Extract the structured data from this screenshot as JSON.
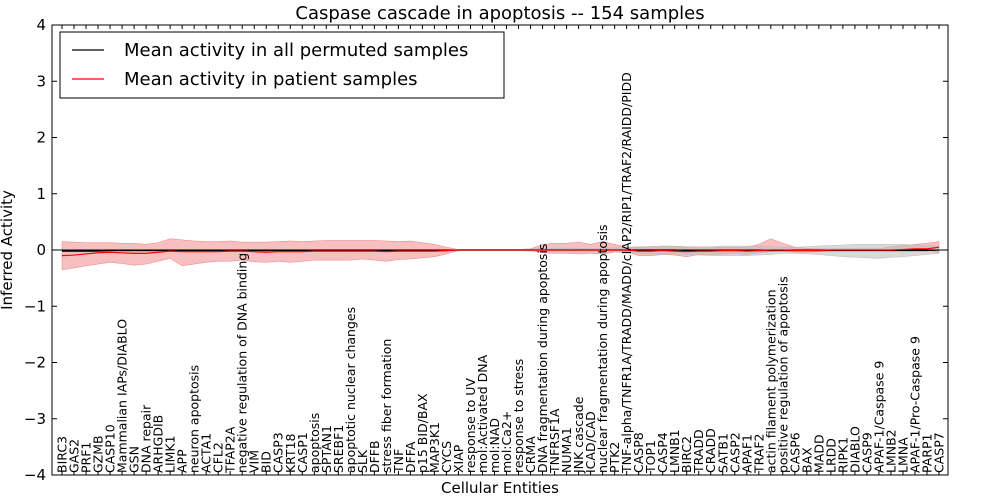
{
  "chart_data": {
    "type": "line",
    "title": "Caspase cascade in apoptosis -- 154 samples",
    "xlabel": "Cellular Entities",
    "ylabel": "Inferred Activity",
    "ylim": [
      -4,
      4
    ],
    "yticks": [
      -4,
      -3,
      -2,
      -1,
      0,
      1,
      2,
      3,
      4
    ],
    "ytick_labels": [
      "−4",
      "−3",
      "−2",
      "−1",
      "0",
      "1",
      "2",
      "3",
      "4"
    ],
    "legend_position": "top-left",
    "categories": [
      "BIRC3",
      "GAS2",
      "PRF1",
      "GZMB",
      "CASP10",
      "Mammalian IAPs/DIABLO",
      "GSN",
      "DNA repair",
      "ARHGDIB",
      "LIMK1",
      "APP",
      "neuron apoptosis",
      "ACTA1",
      "CFL2",
      "TFAP2A",
      "negative regulation of DNA binding",
      "VIM",
      "BID",
      "CASP3",
      "KRT18",
      "CASP1",
      "apoptosis",
      "SPTAN1",
      "SREBF1",
      "apoptotic nuclear changes",
      "SLK",
      "DFFB",
      "stress fiber formation",
      "TNF",
      "DFFA",
      "p15 BID/BAX",
      "MAP3K1",
      "CYCS",
      "XIAP",
      "response to UV",
      "mol:Activated DNA",
      "mol:NAD",
      "mol:Ca2+",
      "response to stress",
      "CRMA",
      "DNA fragmentation during apoptosis",
      "TNFRSF1A",
      "NUMA1",
      "JNK cascade",
      "ICAD/CAD",
      "nuclear fragmentation during apoptosis",
      "PTK2",
      "TNF-alpha/TNFR1A/TRADD/MADD/cIAP2/RIP1/TRAF2/RAIDD/PIDD",
      "CASP8",
      "TOP1",
      "CASP4",
      "LMNB1",
      "BIRC2",
      "TRADD",
      "CRADD",
      "SATB1",
      "CASP2",
      "APAF1",
      "TRAF2",
      "actin filament polymerization",
      "positive regulation of apoptosis",
      "CASP6",
      "BAX",
      "MADD",
      "LRDD",
      "RIPK1",
      "DIABLO",
      "CASP9",
      "APAF-1/Caspase 9",
      "LMNB2",
      "LMNA",
      "APAF-1/Pro-Caspase 9",
      "PARP1",
      "CASP7"
    ],
    "series": [
      {
        "name": "Mean activity in all permuted samples",
        "color": "#000000",
        "band_color": "#bfbfbf",
        "values": [
          -0.02,
          -0.02,
          -0.02,
          -0.02,
          -0.01,
          -0.01,
          -0.01,
          -0.01,
          -0.01,
          -0.01,
          -0.01,
          -0.01,
          -0.01,
          -0.01,
          -0.01,
          -0.01,
          -0.01,
          -0.01,
          -0.01,
          -0.01,
          -0.01,
          -0.01,
          -0.01,
          -0.01,
          -0.01,
          -0.01,
          -0.01,
          -0.01,
          -0.01,
          -0.01,
          -0.01,
          -0.01,
          -0.01,
          0.0,
          0.0,
          0.0,
          0.0,
          0.0,
          0.0,
          0.0,
          0.0,
          0.0,
          0.0,
          0.0,
          0.0,
          0.0,
          0.0,
          0.0,
          0.0,
          0.0,
          0.0,
          0.0,
          -0.01,
          -0.01,
          -0.01,
          -0.01,
          -0.01,
          -0.01,
          -0.01,
          -0.01,
          -0.01,
          -0.01,
          -0.01,
          -0.01,
          -0.01,
          -0.01,
          -0.01,
          -0.01,
          -0.01,
          -0.01,
          -0.01,
          -0.01,
          -0.01,
          0.0
        ],
        "lower": [
          -0.04,
          -0.04,
          -0.04,
          -0.04,
          -0.03,
          -0.03,
          -0.03,
          -0.03,
          -0.03,
          -0.03,
          -0.03,
          -0.03,
          -0.03,
          -0.03,
          -0.03,
          -0.03,
          -0.03,
          -0.03,
          -0.03,
          -0.03,
          -0.03,
          -0.03,
          -0.03,
          -0.03,
          -0.03,
          -0.03,
          -0.03,
          -0.03,
          -0.03,
          -0.03,
          -0.03,
          -0.03,
          -0.03,
          -0.01,
          -0.01,
          -0.01,
          -0.01,
          -0.01,
          -0.01,
          -0.02,
          -0.03,
          -0.03,
          -0.03,
          -0.03,
          -0.03,
          -0.03,
          -0.04,
          -0.05,
          -0.06,
          -0.07,
          -0.08,
          -0.08,
          -0.08,
          -0.09,
          -0.1,
          -0.1,
          -0.1,
          -0.1,
          -0.09,
          -0.08,
          -0.06,
          -0.06,
          -0.07,
          -0.08,
          -0.1,
          -0.12,
          -0.13,
          -0.14,
          -0.15,
          -0.13,
          -0.12,
          -0.1,
          -0.08,
          -0.06
        ],
        "upper": [
          0.0,
          0.0,
          0.0,
          0.0,
          0.01,
          0.01,
          0.01,
          0.01,
          0.01,
          0.01,
          0.01,
          0.01,
          0.01,
          0.01,
          0.01,
          0.01,
          0.01,
          0.01,
          0.01,
          0.01,
          0.01,
          0.01,
          0.01,
          0.01,
          0.01,
          0.01,
          0.01,
          0.01,
          0.01,
          0.01,
          0.01,
          0.01,
          0.01,
          0.01,
          0.01,
          0.01,
          0.01,
          0.01,
          0.01,
          0.02,
          0.03,
          0.03,
          0.03,
          0.03,
          0.03,
          0.03,
          0.04,
          0.05,
          0.06,
          0.06,
          0.07,
          0.07,
          0.06,
          0.06,
          0.06,
          0.07,
          0.07,
          0.07,
          0.07,
          0.06,
          0.05,
          0.05,
          0.06,
          0.07,
          0.08,
          0.09,
          0.1,
          0.1,
          0.1,
          0.1,
          0.1,
          0.09,
          0.08,
          0.07
        ]
      },
      {
        "name": "Mean activity in patient samples",
        "color": "#ff0000",
        "band_color": "#f08080",
        "values": [
          -0.1,
          -0.09,
          -0.07,
          -0.05,
          -0.04,
          -0.05,
          -0.06,
          -0.06,
          -0.04,
          -0.02,
          -0.03,
          -0.03,
          -0.03,
          -0.03,
          -0.02,
          -0.02,
          -0.03,
          -0.04,
          -0.03,
          -0.03,
          -0.03,
          -0.02,
          -0.02,
          -0.02,
          -0.02,
          -0.02,
          -0.02,
          -0.03,
          -0.02,
          -0.02,
          -0.02,
          -0.02,
          -0.01,
          0.0,
          0.0,
          0.0,
          0.0,
          0.0,
          0.0,
          0.0,
          0.0,
          0.0,
          0.0,
          0.0,
          0.0,
          0.0,
          0.0,
          0.0,
          -0.02,
          -0.02,
          -0.01,
          -0.02,
          -0.03,
          -0.02,
          -0.02,
          -0.01,
          -0.01,
          -0.02,
          -0.01,
          0.0,
          0.0,
          -0.01,
          -0.01,
          -0.01,
          0.0,
          0.0,
          0.0,
          0.0,
          0.0,
          0.0,
          0.01,
          0.02,
          0.02,
          0.05
        ],
        "lower": [
          -0.35,
          -0.32,
          -0.28,
          -0.25,
          -0.22,
          -0.24,
          -0.27,
          -0.25,
          -0.2,
          -0.15,
          -0.28,
          -0.25,
          -0.22,
          -0.2,
          -0.2,
          -0.18,
          -0.21,
          -0.22,
          -0.2,
          -0.22,
          -0.2,
          -0.18,
          -0.18,
          -0.18,
          -0.18,
          -0.16,
          -0.18,
          -0.2,
          -0.17,
          -0.16,
          -0.14,
          -0.12,
          -0.07,
          -0.01,
          -0.01,
          -0.01,
          -0.01,
          -0.01,
          -0.01,
          -0.01,
          -0.05,
          -0.06,
          -0.06,
          -0.07,
          -0.06,
          -0.07,
          -0.04,
          -0.03,
          -0.1,
          -0.1,
          -0.08,
          -0.09,
          -0.12,
          -0.08,
          -0.08,
          -0.07,
          -0.06,
          -0.08,
          -0.05,
          -0.03,
          -0.02,
          -0.04,
          -0.04,
          -0.03,
          -0.01,
          -0.01,
          -0.01,
          -0.01,
          -0.01,
          -0.02,
          -0.01,
          0.0,
          0.0,
          -0.05
        ],
        "upper": [
          0.15,
          0.14,
          0.13,
          0.13,
          0.13,
          0.12,
          0.12,
          0.1,
          0.13,
          0.2,
          0.18,
          0.16,
          0.15,
          0.15,
          0.16,
          0.14,
          0.14,
          0.14,
          0.15,
          0.16,
          0.15,
          0.16,
          0.17,
          0.17,
          0.17,
          0.17,
          0.17,
          0.16,
          0.15,
          0.16,
          0.13,
          0.1,
          0.05,
          0.01,
          0.01,
          0.01,
          0.01,
          0.01,
          0.01,
          0.02,
          0.1,
          0.12,
          0.12,
          0.14,
          0.1,
          0.15,
          0.1,
          0.05,
          0.05,
          0.06,
          0.07,
          0.06,
          0.05,
          0.04,
          0.04,
          0.05,
          0.05,
          0.05,
          0.1,
          0.2,
          0.12,
          0.05,
          0.03,
          0.02,
          0.02,
          0.02,
          0.02,
          0.02,
          0.02,
          0.06,
          0.08,
          0.1,
          0.12,
          0.15
        ]
      }
    ]
  }
}
